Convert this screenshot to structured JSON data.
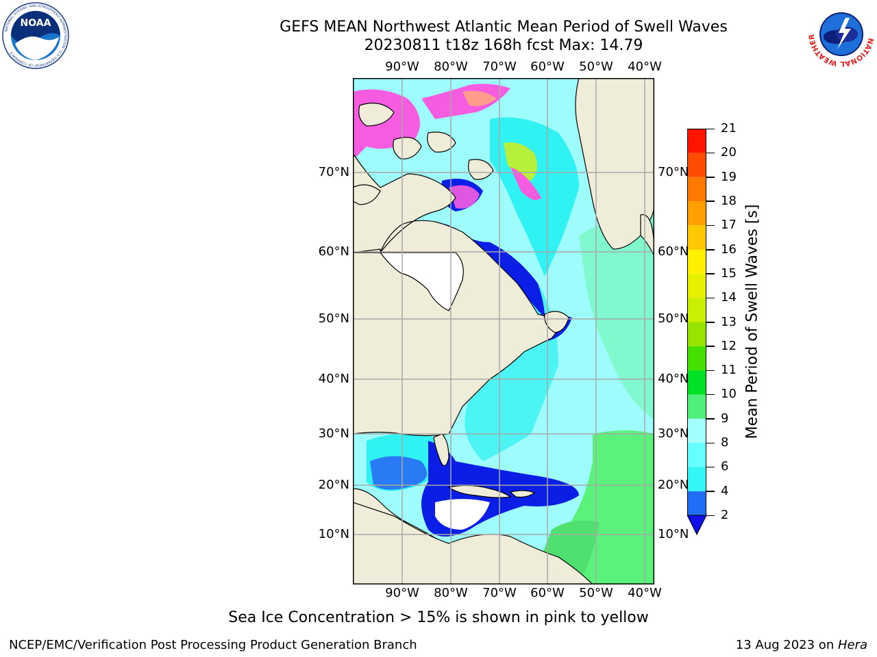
{
  "title": {
    "line1": "GEFS MEAN Northwest Atlantic Mean Period of Swell Waves",
    "line2": "20230811 t18z 168h fcst   Max: 14.79"
  },
  "map": {
    "lon_labels": [
      "90°W",
      "80°W",
      "70°W",
      "60°W",
      "50°W",
      "40°W"
    ],
    "lat_labels": [
      "70°N",
      "60°N",
      "50°N",
      "40°N",
      "30°N",
      "20°N",
      "10°N"
    ],
    "colors": {
      "land": "#efedd9",
      "deep_blue": "#0a1ee6",
      "blue": "#2a7af5",
      "cyan": "#30f2f2",
      "light_cyan": "#9ffcfc",
      "green": "#5af27a",
      "ice_pink": "#f65ce0"
    }
  },
  "colorbar": {
    "label": "Mean Period of Swell Waves [s]",
    "ticks": [
      "2",
      "4",
      "6",
      "8",
      "9",
      "10",
      "11",
      "12",
      "13",
      "14",
      "15",
      "16",
      "17",
      "18",
      "19",
      "20",
      "21"
    ],
    "colors": [
      "#1f6ef5",
      "#00e6f5",
      "#33f5f5",
      "#66ffff",
      "#a3ffff",
      "#4ff07a",
      "#00e024",
      "#44e000",
      "#96e400",
      "#c8f000",
      "#e6f000",
      "#fff000",
      "#ffc800",
      "#ffa000",
      "#ff7800",
      "#ff4b00",
      "#ff1400",
      "#ff0000"
    ],
    "extend_color": "#1010e6"
  },
  "note": "Sea Ice Concentration > 15% is shown in pink to yellow",
  "footer": {
    "left": "NCEP/EMC/Verification Post Processing Product Generation Branch",
    "right_prefix": "13 Aug 2023 on ",
    "right_host": "Hera"
  },
  "logos": {
    "noaa_text": "NOAA",
    "noaa_ring": "NATIONAL OCEANIC AND ATMOSPHERIC ADMINISTRATION · U.S. DEPARTMENT OF COMMERCE",
    "nws_ring": "NATIONAL WEATHER SERVICE"
  }
}
